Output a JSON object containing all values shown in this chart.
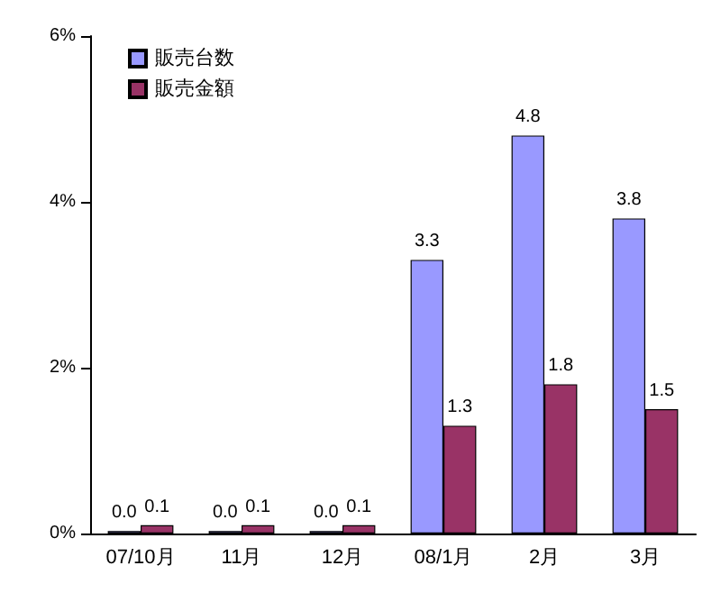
{
  "chart_data": {
    "type": "bar",
    "categories": [
      "07/10月",
      "11月",
      "12月",
      "08/1月",
      "2月",
      "3月"
    ],
    "series": [
      {
        "name": "販売台数",
        "color": "#9999ff",
        "values": [
          0.03,
          0.03,
          0.03,
          3.3,
          4.8,
          3.8
        ],
        "value_labels": [
          "0.0",
          "0.0",
          "0.0",
          "3.3",
          "4.8",
          "3.8"
        ]
      },
      {
        "name": "販売金額",
        "color": "#993366",
        "values": [
          0.1,
          0.1,
          0.1,
          1.3,
          1.8,
          1.5
        ],
        "value_labels": [
          "0.1",
          "0.1",
          "0.1",
          "1.3",
          "1.8",
          "1.5"
        ]
      }
    ],
    "ylim": [
      0,
      6
    ],
    "yticks": [
      {
        "value": 0,
        "label": "0%"
      },
      {
        "value": 2,
        "label": "2%"
      },
      {
        "value": 4,
        "label": "4%"
      },
      {
        "value": 6,
        "label": "6%"
      }
    ],
    "grid": false,
    "legend": "top left"
  }
}
